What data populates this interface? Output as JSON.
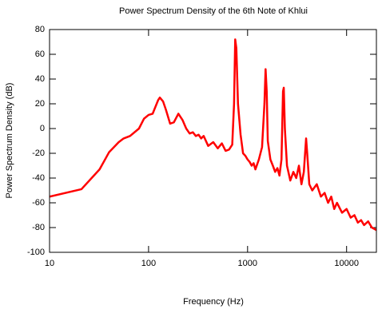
{
  "chart_data": {
    "type": "line",
    "title": "Power Spectrum Density of the 6th Note of Khlui",
    "x_label": "Frequency (Hz)",
    "y_label": "Power Spectrum Density (dB)",
    "x_scale": "log",
    "xlim": [
      10,
      20000
    ],
    "xticks": [
      10,
      100,
      1000,
      10000
    ],
    "ylim": [
      -100,
      80
    ],
    "yticks": [
      -100,
      -80,
      -60,
      -40,
      -20,
      0,
      20,
      40,
      60,
      80
    ],
    "grid": false,
    "x": [
      10,
      21,
      32,
      40,
      50,
      56,
      65,
      80,
      90,
      100,
      110,
      125,
      130,
      140,
      150,
      165,
      180,
      200,
      220,
      240,
      260,
      280,
      300,
      320,
      340,
      360,
      400,
      450,
      500,
      550,
      600,
      650,
      700,
      730,
      750,
      770,
      800,
      850,
      900,
      950,
      1000,
      1050,
      1100,
      1150,
      1200,
      1300,
      1400,
      1480,
      1520,
      1560,
      1600,
      1700,
      1800,
      1900,
      2000,
      2100,
      2200,
      2280,
      2320,
      2380,
      2500,
      2700,
      2900,
      3100,
      3300,
      3500,
      3700,
      3900,
      4000,
      4200,
      4500,
      5000,
      5500,
      6000,
      6500,
      7000,
      7500,
      8000,
      9000,
      10000,
      11000,
      12000,
      13000,
      14000,
      15000,
      16500,
      18000,
      20000
    ],
    "series": [
      {
        "color": "#ff0000",
        "values": [
          -55,
          -49,
          -33,
          -19,
          -11,
          -8,
          -6,
          0,
          8,
          11,
          12,
          23,
          25,
          22,
          15,
          4,
          5,
          12,
          7,
          0,
          -4,
          -3,
          -6,
          -5,
          -8,
          -6,
          -14,
          -11,
          -16,
          -12,
          -18,
          -17,
          -13,
          20,
          72,
          65,
          20,
          -5,
          -20,
          -22,
          -25,
          -27,
          -30,
          -28,
          -33,
          -25,
          -15,
          20,
          48,
          30,
          -10,
          -25,
          -30,
          -35,
          -32,
          -38,
          -25,
          30,
          33,
          0,
          -30,
          -42,
          -35,
          -40,
          -30,
          -45,
          -35,
          -8,
          -20,
          -45,
          -50,
          -45,
          -55,
          -52,
          -60,
          -55,
          -65,
          -60,
          -68,
          -65,
          -72,
          -70,
          -76,
          -74,
          -78,
          -75,
          -80,
          -82
        ]
      }
    ]
  }
}
